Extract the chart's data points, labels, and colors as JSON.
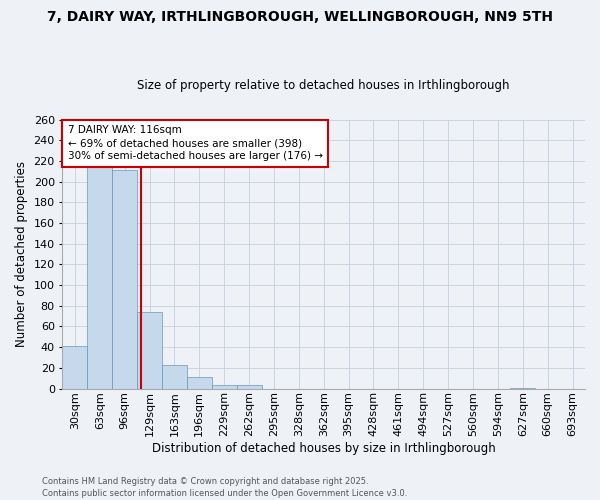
{
  "title": "7, DAIRY WAY, IRTHLINGBOROUGH, WELLINGBOROUGH, NN9 5TH",
  "subtitle": "Size of property relative to detached houses in Irthlingborough",
  "xlabel": "Distribution of detached houses by size in Irthlingborough",
  "ylabel": "Number of detached properties",
  "bar_values": [
    41,
    216,
    211,
    74,
    23,
    11,
    3,
    3,
    0,
    0,
    0,
    0,
    0,
    0,
    0,
    0,
    0,
    0,
    1,
    0,
    0
  ],
  "categories": [
    "30sqm",
    "63sqm",
    "96sqm",
    "129sqm",
    "163sqm",
    "196sqm",
    "229sqm",
    "262sqm",
    "295sqm",
    "328sqm",
    "362sqm",
    "395sqm",
    "428sqm",
    "461sqm",
    "494sqm",
    "527sqm",
    "560sqm",
    "594sqm",
    "627sqm",
    "660sqm",
    "693sqm"
  ],
  "bar_color": "#c5d8ec",
  "bar_edgecolor": "#6699bb",
  "ylim": [
    0,
    260
  ],
  "yticks": [
    0,
    20,
    40,
    60,
    80,
    100,
    120,
    140,
    160,
    180,
    200,
    220,
    240,
    260
  ],
  "vline_x": 2.67,
  "vline_color": "#cc0000",
  "annotation_line1": "7 DAIRY WAY: 116sqm",
  "annotation_line2": "← 69% of detached houses are smaller (398)",
  "annotation_line3": "30% of semi-detached houses are larger (176) →",
  "annotation_box_color": "#cc0000",
  "background_color": "#eef2f7",
  "footer_line1": "Contains HM Land Registry data © Crown copyright and database right 2025.",
  "footer_line2": "Contains public sector information licensed under the Open Government Licence v3.0.",
  "grid_color": "#c8d0dc",
  "title_fontsize": 10,
  "subtitle_fontsize": 8.5,
  "xlabel_fontsize": 8.5,
  "ylabel_fontsize": 8.5,
  "tick_fontsize": 8,
  "annotation_fontsize": 7.5,
  "footer_fontsize": 6
}
